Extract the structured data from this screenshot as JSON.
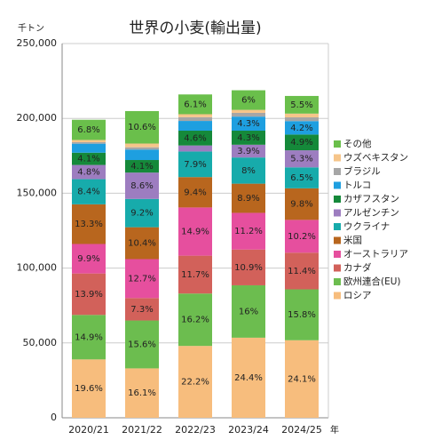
{
  "chart_data": {
    "type": "stacked_bar",
    "title": "世界の小麦(輸出量)",
    "y_unit": "千トン",
    "x_unit": "年",
    "categories": [
      "2020/21",
      "2021/22",
      "2022/23",
      "2023/24",
      "2024/25"
    ],
    "ylim": [
      0,
      250000
    ],
    "yticks": [
      {
        "value": 0,
        "label": "0"
      },
      {
        "value": 50000,
        "label": "50,000"
      },
      {
        "value": 100000,
        "label": "100,000"
      },
      {
        "value": 150000,
        "label": "150,000"
      },
      {
        "value": 200000,
        "label": "200,000"
      },
      {
        "value": 250000,
        "label": "250,000"
      }
    ],
    "grid": true,
    "series": [
      {
        "name": "ロシア",
        "color": "#f7bd7d",
        "values": [
          39000,
          33000,
          48000,
          53500,
          51800
        ],
        "value_labels": [
          "19.6%",
          "16.1%",
          "22.2%",
          "24.4%",
          "24.1%"
        ]
      },
      {
        "name": "欧州連合(EU)",
        "color": "#6cbd4f",
        "values": [
          29700,
          32000,
          35000,
          35000,
          34000
        ],
        "value_labels": [
          "14.9%",
          "15.6%",
          "16.2%",
          "16%",
          "15.8%"
        ]
      },
      {
        "name": "カナダ",
        "color": "#d2615a",
        "values": [
          27700,
          15000,
          25300,
          23900,
          24500
        ],
        "value_labels": [
          "13.9%",
          "7.3%",
          "11.7%",
          "10.9%",
          "11.4%"
        ]
      },
      {
        "name": "オーストラリア",
        "color": "#e64f9e",
        "values": [
          19700,
          26000,
          32200,
          24500,
          21900
        ],
        "value_labels": [
          "9.9%",
          "12.7%",
          "14.9%",
          "11.2%",
          "10.2%"
        ]
      },
      {
        "name": "米国",
        "color": "#b8661e",
        "values": [
          26500,
          21300,
          20300,
          19500,
          21100
        ],
        "value_labels": [
          "13.3%",
          "10.4%",
          "9.4%",
          "8.9%",
          "9.8%"
        ]
      },
      {
        "name": "ウクライナ",
        "color": "#17abab",
        "values": [
          16800,
          18900,
          17100,
          17500,
          14000
        ],
        "value_labels": [
          "8.4%",
          "9.2%",
          "7.9%",
          "8%",
          "6.5%"
        ]
      },
      {
        "name": "アルゼンチン",
        "color": "#9d7dc0",
        "values": [
          9500,
          17600,
          4000,
          8500,
          11400
        ],
        "value_labels": [
          "4.8%",
          "8.6%",
          null,
          "3.9%",
          "5.3%"
        ]
      },
      {
        "name": "カザフスタン",
        "color": "#15893a",
        "values": [
          8200,
          8400,
          9900,
          9400,
          10500
        ],
        "value_labels": [
          "4.1%",
          "4.1%",
          "4.6%",
          "4.3%",
          "4.9%"
        ]
      },
      {
        "name": "トルコ",
        "color": "#1e9fe0",
        "values": [
          6000,
          7000,
          6500,
          9400,
          9000
        ],
        "value_labels": [
          null,
          null,
          null,
          "4.3%",
          "4.2%"
        ]
      },
      {
        "name": "ブラジル",
        "color": "#a6a6a6",
        "values": [
          1000,
          1500,
          2500,
          2500,
          2500
        ],
        "value_labels": [
          null,
          null,
          null,
          null,
          null
        ]
      },
      {
        "name": "ウズベキスタン",
        "color": "#f6c58a",
        "values": [
          1500,
          2500,
          2000,
          2000,
          2500
        ],
        "value_labels": [
          null,
          null,
          null,
          null,
          null
        ]
      },
      {
        "name": "その他",
        "color": "#6abf4b",
        "values": [
          13500,
          21700,
          13200,
          13100,
          11800
        ],
        "value_labels": [
          "6.8%",
          "10.6%",
          "6.1%",
          "6%",
          "5.5%"
        ]
      }
    ]
  }
}
